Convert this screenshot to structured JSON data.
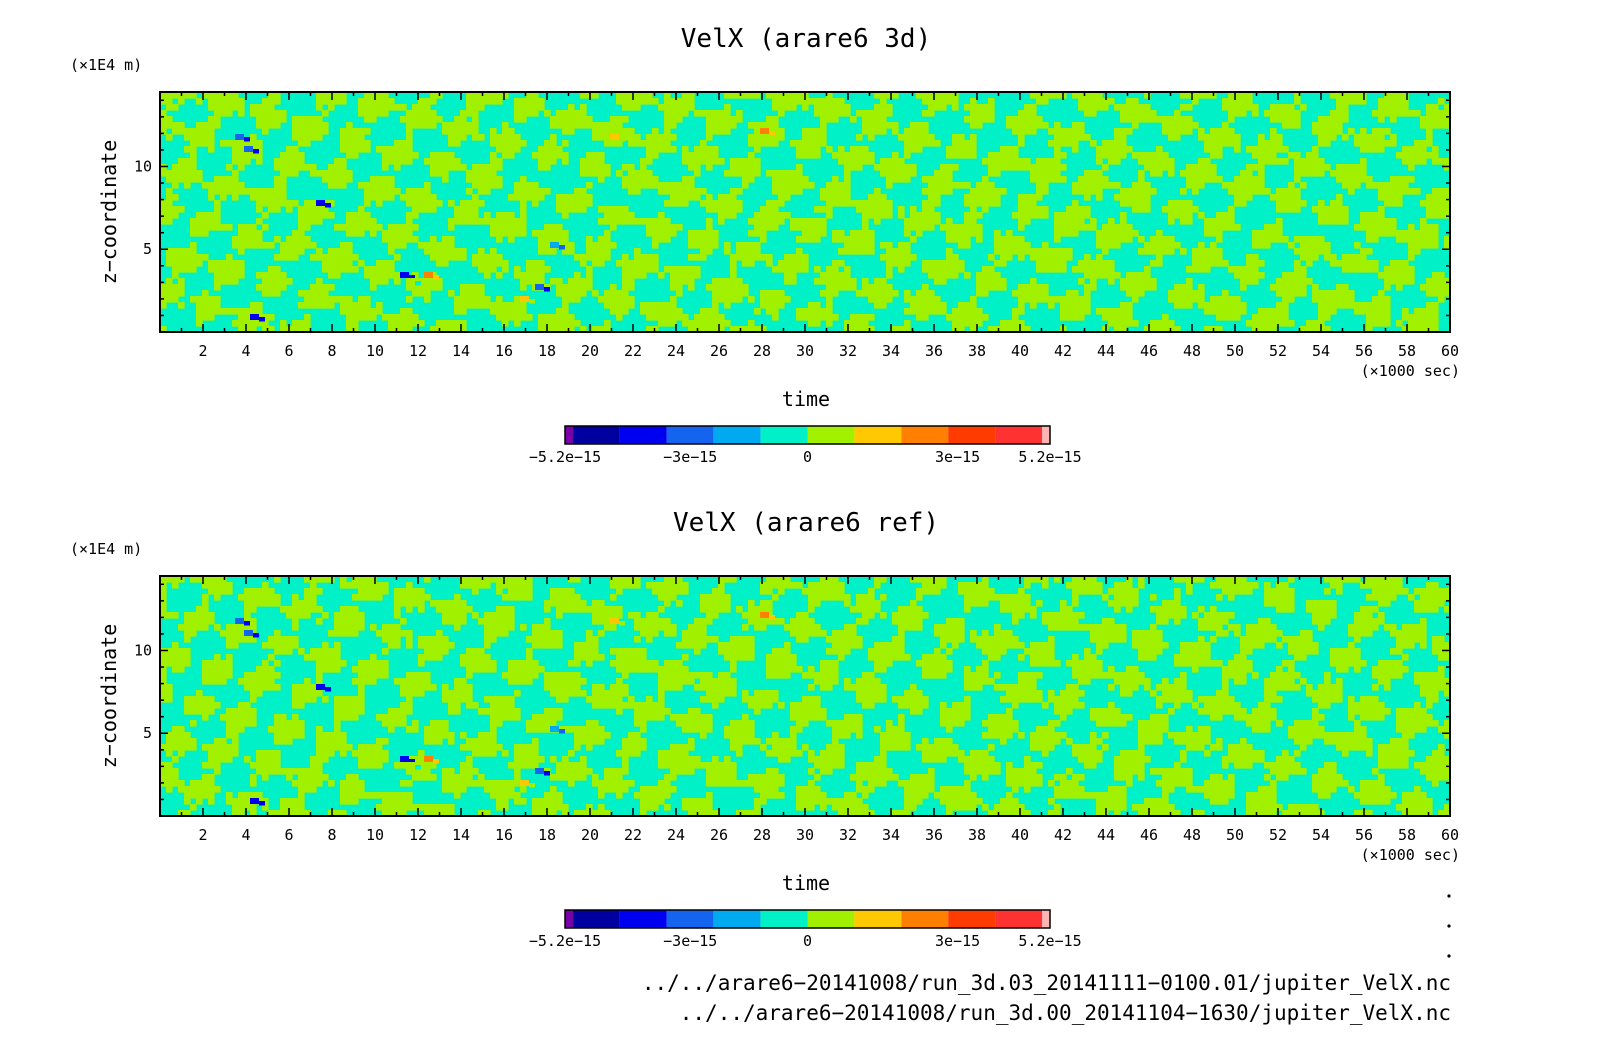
{
  "chart_data": [
    {
      "type": "heatmap",
      "title": "VelX (arare6 3d)",
      "xlabel": "time",
      "x_unit": "(×1000 sec)",
      "ylabel": "z−coordinate",
      "y_unit": "(×1E4 m)",
      "xlim": [
        0,
        60
      ],
      "ylim": [
        0,
        14.5
      ],
      "xticks": [
        2,
        4,
        6,
        8,
        10,
        12,
        14,
        16,
        18,
        20,
        22,
        24,
        26,
        28,
        30,
        32,
        34,
        36,
        38,
        40,
        42,
        44,
        46,
        48,
        50,
        52,
        54,
        56,
        58,
        60
      ],
      "yticks": [
        5,
        10
      ],
      "colorbar": {
        "levels": [
          -5.2e-15,
          -4.5e-15,
          -3.5e-15,
          -3e-15,
          -2e-15,
          -1e-15,
          0,
          1e-15,
          2e-15,
          3e-15,
          4e-15,
          5e-15,
          5.2e-15
        ],
        "colors": [
          "#7a00a8",
          "#0000a0",
          "#0000f0",
          "#1464f0",
          "#00aaf0",
          "#00f0c8",
          "#a0f000",
          "#ffc800",
          "#ff8000",
          "#ff3c00",
          "#ff3232",
          "#ffb4b4"
        ],
        "tick_labels": [
          "−5.2e−15",
          "−3e−15",
          "0",
          "3e−15",
          "5.2e−15"
        ]
      }
    },
    {
      "type": "heatmap",
      "title": "VelX (arare6 ref)",
      "xlabel": "time",
      "x_unit": "(×1000 sec)",
      "ylabel": "z−coordinate",
      "y_unit": "(×1E4 m)",
      "xlim": [
        0,
        60
      ],
      "ylim": [
        0,
        14.5
      ],
      "xticks": [
        2,
        4,
        6,
        8,
        10,
        12,
        14,
        16,
        18,
        20,
        22,
        24,
        26,
        28,
        30,
        32,
        34,
        36,
        38,
        40,
        42,
        44,
        46,
        48,
        50,
        52,
        54,
        56,
        58,
        60
      ],
      "yticks": [
        5,
        10
      ],
      "colorbar": {
        "levels": [
          -5.2e-15,
          -4.5e-15,
          -3.5e-15,
          -3e-15,
          -2e-15,
          -1e-15,
          0,
          1e-15,
          2e-15,
          3e-15,
          4e-15,
          5e-15,
          5.2e-15
        ],
        "colors": [
          "#7a00a8",
          "#0000a0",
          "#0000f0",
          "#1464f0",
          "#00aaf0",
          "#00f0c8",
          "#a0f000",
          "#ffc800",
          "#ff8000",
          "#ff3c00",
          "#ff3232",
          "#ffb4b4"
        ],
        "tick_labels": [
          "−5.2e−15",
          "−3e−15",
          "0",
          "3e−15",
          "5.2e−15"
        ]
      }
    }
  ],
  "footer": {
    "file1": "../../arare6−20141008/run_3d.03_20141111−0100.01/jupiter_VelX.nc",
    "file2": "../../arare6−20141008/run_3d.00_20141104−1630/jupiter_VelX.nc"
  }
}
